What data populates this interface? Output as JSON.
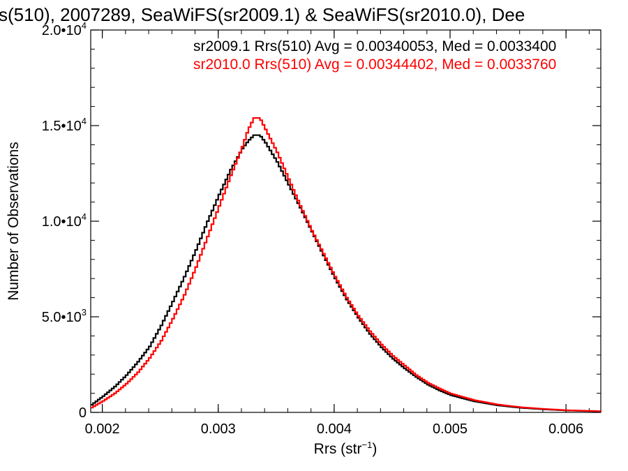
{
  "chart_data": {
    "type": "line",
    "title": "s(510), 2007289, SeaWiFS(sr2009.1) & SeaWiFS(sr2010.0), Dee",
    "xlabel": "Rrs (str",
    "xlabel_sup": "−1",
    "xlabel_end": ")",
    "ylabel": "Number of Observations",
    "xlim": [
      0.0019,
      0.0063
    ],
    "ylim": [
      0,
      20000
    ],
    "xticks": [
      {
        "value": 0.002,
        "label": "0.002"
      },
      {
        "value": 0.003,
        "label": "0.003"
      },
      {
        "value": 0.004,
        "label": "0.004"
      },
      {
        "value": 0.005,
        "label": "0.005"
      },
      {
        "value": 0.006,
        "label": "0.006"
      }
    ],
    "yticks": [
      {
        "value": 0,
        "mant": "0",
        "exp": ""
      },
      {
        "value": 5000,
        "mant": "5.0•10",
        "exp": "3"
      },
      {
        "value": 10000,
        "mant": "1.0•10",
        "exp": "4"
      },
      {
        "value": 15000,
        "mant": "1.5•10",
        "exp": "4"
      },
      {
        "value": 20000,
        "mant": "2.0•10",
        "exp": "4"
      }
    ],
    "grid": false,
    "legend_position": "top-right",
    "series": [
      {
        "name": "sr2009.1",
        "legend": "sr2009.1 Rrs(510) Avg = 0.00340053, Med = 0.0033400",
        "color": "#000000",
        "x": [
          0.0019,
          0.002,
          0.0021,
          0.0022,
          0.0023,
          0.0024,
          0.0025,
          0.0026,
          0.0027,
          0.0028,
          0.0029,
          0.003,
          0.0031,
          0.0032,
          0.00325,
          0.0033,
          0.00335,
          0.0034,
          0.0035,
          0.0036,
          0.0037,
          0.0038,
          0.0039,
          0.004,
          0.0041,
          0.0042,
          0.0043,
          0.0044,
          0.0045,
          0.0046,
          0.0047,
          0.0048,
          0.0049,
          0.005,
          0.0052,
          0.0054,
          0.0056,
          0.0058,
          0.006,
          0.0063
        ],
        "values": [
          400,
          850,
          1350,
          1950,
          2650,
          3450,
          4550,
          5800,
          7100,
          8500,
          10000,
          11400,
          12700,
          13800,
          14200,
          14500,
          14500,
          14100,
          13100,
          11900,
          10700,
          9450,
          8200,
          7000,
          5900,
          4950,
          4100,
          3400,
          2800,
          2300,
          1850,
          1450,
          1150,
          900,
          580,
          370,
          240,
          160,
          100,
          50
        ]
      },
      {
        "name": "sr2010.0",
        "legend": "sr2010.0 Rrs(510) Avg = 0.00344402, Med = 0.0033760",
        "color": "#ff0000",
        "x": [
          0.0019,
          0.002,
          0.0021,
          0.0022,
          0.0023,
          0.0024,
          0.0025,
          0.0026,
          0.0027,
          0.0028,
          0.0029,
          0.003,
          0.0031,
          0.0032,
          0.00325,
          0.0033,
          0.00335,
          0.0034,
          0.0035,
          0.0036,
          0.0037,
          0.0038,
          0.0039,
          0.004,
          0.0041,
          0.0042,
          0.0043,
          0.0044,
          0.0045,
          0.0046,
          0.0047,
          0.0048,
          0.0049,
          0.005,
          0.0052,
          0.0054,
          0.0056,
          0.0058,
          0.006,
          0.0063
        ],
        "values": [
          250,
          600,
          1000,
          1500,
          2100,
          2850,
          3750,
          4900,
          6150,
          7600,
          9200,
          10800,
          12400,
          13900,
          14800,
          15400,
          15400,
          14800,
          13600,
          12200,
          10800,
          9500,
          8300,
          7100,
          6000,
          5050,
          4250,
          3550,
          2950,
          2450,
          1950,
          1550,
          1250,
          980,
          640,
          410,
          270,
          180,
          110,
          60
        ]
      }
    ]
  }
}
